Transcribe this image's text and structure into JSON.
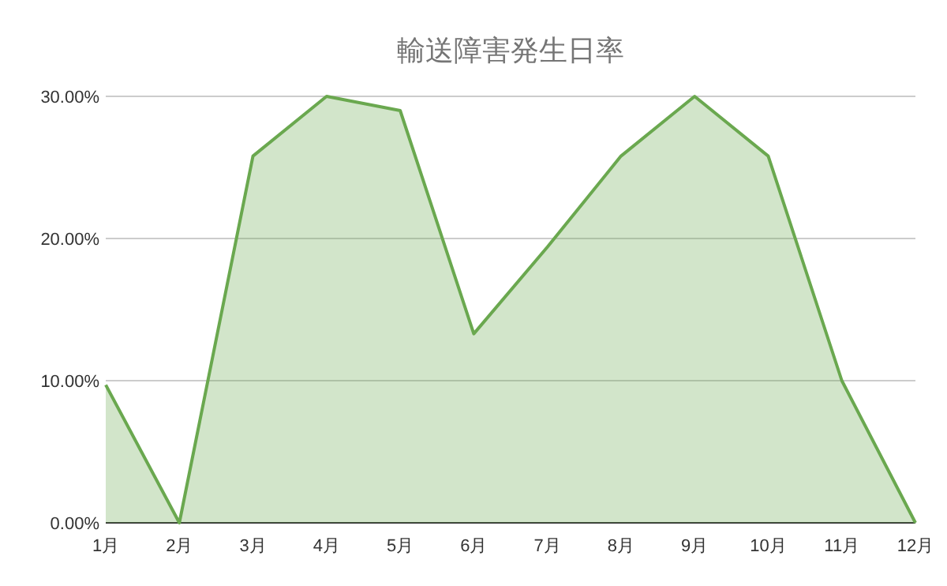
{
  "chart_data": {
    "type": "area",
    "title": "輸送障害発生日率",
    "categories": [
      "1月",
      "2月",
      "3月",
      "4月",
      "5月",
      "6月",
      "7月",
      "8月",
      "9月",
      "10月",
      "11月",
      "12月"
    ],
    "series": [
      {
        "color": "#6aa84f",
        "values": [
          9.7,
          0,
          25.8,
          30,
          29.0,
          13.3,
          19.4,
          25.8,
          30,
          25.8,
          10,
          0
        ]
      }
    ],
    "ylim": [
      0,
      30
    ],
    "yticks": [
      {
        "value": 0,
        "label": "0.00%"
      },
      {
        "value": 10,
        "label": "10.00%"
      },
      {
        "value": 20,
        "label": "20.00%"
      },
      {
        "value": 30,
        "label": "30.00%"
      }
    ],
    "grid": "y"
  }
}
